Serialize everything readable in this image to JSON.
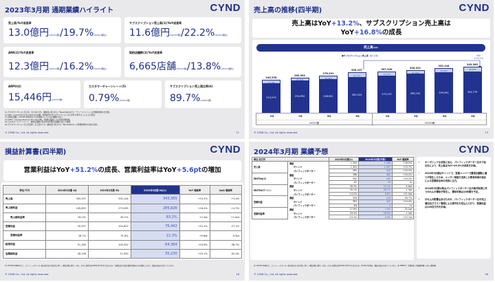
{
  "brand": {
    "logo": "CYND",
    "copyright": "© CYND Co., Ltd. All rights reserved.",
    "accent": "#1e2e8a",
    "highlight": "#3e53c7"
  },
  "slide1": {
    "title": "2023年3月期 通期業績ハイライト",
    "page": "11",
    "cards": [
      {
        "label": "売上高/YoY成長率",
        "value": "13.0億円",
        "note1": "(2023/3期)",
        "sep": "/",
        "value2": "19.7%",
        "note2": "(2022/3期比)"
      },
      {
        "label": "サブスクリプション売上高(1)/YoY成長率",
        "value": "11.6億円",
        "note1": "(2023/3期)",
        "sep": "/",
        "value2": "22.2%",
        "note2": "(2022/3期比)"
      },
      {
        "label": "ARR(2)/YoY成長率",
        "value": "12.3億円",
        "note1": "(2023/3期)",
        "sep": "/",
        "value2": "16.2%",
        "note2": "(2022/3期比)"
      },
      {
        "label": "契約店舗数(3)/YoY成長率",
        "value": "6,665店舗",
        "note1": "(2023/3期)",
        "sep": "/",
        "value2": "13.8%",
        "note2": "(2022/3期比)"
      },
      {
        "label": "ARPU(4)",
        "value": "15,446円",
        "note1": "(2023/3期)"
      },
      {
        "label": "カスタマーチャーンレート(5)",
        "value": "0.79%",
        "note1": "(2023/3期)"
      },
      {
        "label": "サブスクリプション売上高比率(6)",
        "value": "89.7%",
        "note1": "(2023/3期)"
      }
    ],
    "notes": [
      "(1) サブスクリプション売上高：売上高のうち、継続的に得られる「BeautyMerit(ビューティーメリット)」の月額利用料の合計額。",
      "(2) ARR：Annual Recurring Revenueの略。各期末月のサブスクリプション売上高を12倍することにより算出。",
      "(3) 契約店舗数：2023年3月末時点での有償導入している店舗数の合計。",
      "(4) ARPU：Average Revenue Per Userの略。1契約店舗あたりの平均月額単価。",
      "(5) カスタマーチャーンレート：解約店舗数の月次平均を期首店舗数で除した数値。",
      "(6) サブスクリプション売上高比率：売上高のうち、継続的に得られる「BeautyMerit」の月額利用料の占める割合。"
    ]
  },
  "slide2": {
    "title": "売上高の推移(四半期)",
    "page": "13",
    "headline_pre": "売上高はYoY",
    "headline_acc1": "+13.2%",
    "headline_mid": "、サブスクリプション売上高は",
    "headline_pre2": "YoY",
    "headline_acc2": "+16.8%",
    "headline_post": "の成長",
    "chart_title": "売上高",
    "chart_unit": "(千円)",
    "legend_sub": "■サブスクリプション売上高",
    "legend_other": "■その他",
    "yoy_label": "YoY",
    "yoy_value": "+13.2%"
  },
  "chart_data": {
    "type": "bar",
    "title": "売上高 (千円)",
    "categories": [
      "2022/3期 1Q",
      "2022/3期 2Q",
      "2022/3期 3Q",
      "2022/3期 4Q",
      "2023/3期 1Q",
      "2023/3期 2Q",
      "2023/3期 3Q",
      "2023/3期 4Q"
    ],
    "quarter_labels": [
      "1Q",
      "2Q",
      "3Q",
      "4Q",
      "1Q",
      "2Q",
      "3Q",
      "4Q"
    ],
    "year_labels": [
      "2022/3期",
      "2023/3期"
    ],
    "stacked": true,
    "series": [
      {
        "name": "サブスクリプション売上高",
        "color": "#22338f",
        "values": [
          213575,
          234894,
          246841,
          261024,
          275132,
          289152,
          299561,
          304779
        ],
        "labels": [
          "213,575",
          "234,894",
          "246,841",
          "261,024",
          "275,132",
          "289,152",
          "299,561",
          "304,779"
        ]
      },
      {
        "name": "その他",
        "color": "#c6d0ec",
        "values": [
          31760,
          27408,
          31450,
          42172,
          32187,
          31169,
          32583,
          38586
        ],
        "labels": [
          "31,760",
          "27,408",
          "31,450",
          "42,172",
          "32,187",
          "31,169",
          "32,583",
          "38,586"
        ]
      }
    ],
    "totals": [
      245335,
      262302,
      278291,
      303197,
      307320,
      320321,
      332144,
      343365
    ],
    "total_labels": [
      "245,335",
      "262,302",
      "278,291",
      "303,197",
      "307,320",
      "320,321",
      "332,144",
      "343,365"
    ],
    "annotation": "YoY +13.2%",
    "ylim": [
      0,
      360000
    ]
  },
  "slide3": {
    "title": "損益計算書(四半期)",
    "page": "18",
    "headline_pre": "営業利益はYoY",
    "headline_acc1": "+51.2%",
    "headline_mid": "の成長、営業利益率はYoY",
    "headline_acc2": "+5.6pt",
    "headline_post": "の増加",
    "columns": [
      "単位:千円",
      "2022年3月期 4Q",
      "2023年3月期 3Q",
      "2023年3月期 4Q(1)",
      "YoY 増減率",
      "QoQ 増減率"
    ],
    "rows": [
      {
        "label": "売上高",
        "c1": "303,197",
        "c2": "332,144",
        "c3": "343,365",
        "yoy": "+13.2%",
        "qoq": "+3.4%",
        "indent": false
      },
      {
        "label": "売上総利益",
        "c1": "245,653",
        "c2": "273,095",
        "c3": "285,826",
        "yoy": "+16.4%",
        "qoq": "+4.7%",
        "indent": false
      },
      {
        "label": "売上総利益率",
        "c1": "81.0%",
        "c2": "82.2%",
        "c3": "83.2%",
        "yoy": "+2.2pt",
        "qoq": "+1.0pt",
        "indent": true
      },
      {
        "label": "営業利益",
        "c1": "50,557",
        "c2": "104,832",
        "c3": "76,442",
        "yoy": "+51.2%",
        "qoq": "-27.1%",
        "indent": false
      },
      {
        "label": "営業利益率",
        "c1": "16.7%",
        "c2": "31.6%",
        "c3": "22.3%",
        "yoy": "+5.6pt",
        "qoq": "-9.3pt",
        "indent": true
      },
      {
        "label": "経常利益",
        "c1": "51,180",
        "c2": "105,032",
        "c3": "64,364",
        "yoy": "+25.8%",
        "qoq": "-38.7%",
        "indent": false
      },
      {
        "label": "当期純利益",
        "c1": "28,156",
        "c2": "71,000",
        "c3": "35,230",
        "yoy": "+25.1%",
        "qoq": "-50.4%",
        "indent": false
      }
    ],
    "footnote": "(1) 2023年3月期4Qより、パシフィックポーター株式会社を子会社化に伴い、連結決算に移行。なお、みなし取得日は2023年3月31日であるため、当連結会計年度は貸借対照表のみを連結しており、損益の取込みは行っていない。"
  },
  "slide4": {
    "title": "2024年3月期 業績予想",
    "page": "26",
    "columns": [
      "単位:百万円",
      "",
      "2023年3月期(1)",
      "2024年3月期(予想)",
      "YoY 増減率"
    ],
    "groups": [
      {
        "label": "売上高",
        "rows": [
          {
            "sub": "連結",
            "a": "1,303",
            "b": "1,948",
            "yoy": "+49.5%"
          },
          {
            "sub": "サインド",
            "a": "1,303",
            "b": "1,507",
            "yoy": "+15.7%"
          },
          {
            "sub": "パシフィックポーター",
            "a": "365",
            "b": "440",
            "yoy": "+20.5%"
          }
        ]
      },
      {
        "label": "EBITDA(2)",
        "rows": [
          {
            "sub": "連結",
            "a": "368",
            "b": "462",
            "yoy": "+24.2%"
          },
          {
            "sub": "サインド",
            "a": "392",
            "b": "432",
            "yoy": "+10.2%"
          },
          {
            "sub": "パシフィックポーター",
            "a": "-52",
            "b": "29",
            "yoy": "-%"
          }
        ]
      },
      {
        "label": "EBITDAマージン",
        "rows": [
          {
            "sub": "連結",
            "a": "28.3%",
            "b": "23.7%",
            "yoy": "-4.6pt"
          },
          {
            "sub": "サインド",
            "a": "30.1%",
            "b": "28.7%",
            "yoy": "-1.4pt"
          },
          {
            "sub": "パシフィックポーター",
            "a": "-14.4%",
            "b": "6.6%",
            "yoy": "+21.0pt"
          }
        ]
      },
      {
        "label": "営業利益",
        "rows": [
          {
            "sub": "連結",
            "a": "359",
            "b": "145",
            "yoy": "-59.7%"
          },
          {
            "sub": "サインド",
            "a": "383",
            "b": "422",
            "yoy": "+10.0%"
          },
          {
            "sub": "パシフィックポーター",
            "a": "-84",
            "b": "2",
            "yoy": "-%"
          }
        ]
      },
      {
        "label": "営業利益率",
        "rows": [
          {
            "sub": "連結",
            "a": "27.6%",
            "b": "7.4%",
            "yoy": "-20.2pt"
          },
          {
            "sub": "サインド",
            "a": "29.4%",
            "b": "28.0%",
            "yoy": "-1.4pt"
          },
          {
            "sub": "パシフィックポーター",
            "a": "-23.2%",
            "b": "0.5%",
            "yoy": "+23.7pt"
          }
        ]
      }
    ],
    "bullets": [
      "オーガニックな成長に加え、パシフィックポーター社の子会社化により、売上高はYoY+49.5%の成長を計画。",
      "2023年3月期はサインドで、営業メンバーで獲得店舗数に偏りが発生したため、メンター制度を活用した教育体制の強化による営業部全体の成長に注力。",
      "2024年3月期以降はパシフィックポーター社の株式取得に伴うのれんの償却が発生し、償却年数は10年間を予定。",
      "のれんの影響はあるものの、パシフィックポーター社の売上増加及びコスト管理による黒字化を見込んでおり、営業利益は145百万円を計画。"
    ],
    "footnote": "(1) 2023年3月期より、パシフィックポーター株式会社を子会社化に伴い、連結決算に移行。なお、みなし取得日は2023年3月31日であるため、2023年3月期は、損益の取込みは行っていない。(2) EBITDA：営業利益＋減価償却費＋のれん償却額"
  }
}
